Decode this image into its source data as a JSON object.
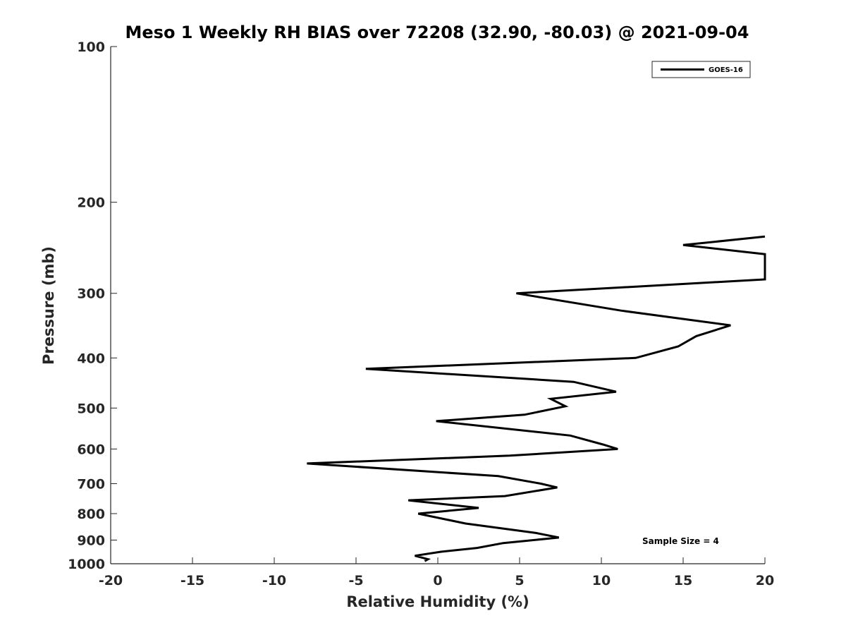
{
  "chart_data": {
    "type": "line",
    "title": "Meso 1 Weekly RH BIAS over 72208 (32.90, -80.03) @ 2021-09-04",
    "xlabel": "Relative Humidity (%)",
    "ylabel": "Pressure (mb)",
    "xlim": [
      -20,
      20
    ],
    "ylim": [
      100,
      1000
    ],
    "y_scale": "log",
    "y_reversed": true,
    "grid": false,
    "legend_position": "top-right",
    "x_ticks": [
      "-20",
      "-15",
      "-10",
      "-5",
      "0",
      "5",
      "10",
      "15",
      "20"
    ],
    "y_ticks": [
      "100",
      "200",
      "300",
      "400",
      "500",
      "600",
      "700",
      "800",
      "900",
      "1000"
    ],
    "annotation": "Sample Size = 4",
    "series": [
      {
        "name": "GOES-16",
        "color": "#000000",
        "x": [
          20,
          15.0,
          20,
          20,
          4.8,
          11.2,
          17.9,
          15.8,
          14.7,
          12.1,
          -4.4,
          8.3,
          10.9,
          6.9,
          7.8,
          5.3,
          -0.1,
          8.1,
          10.1,
          11.0,
          4.4,
          -8.0,
          3.7,
          6.3,
          7.3,
          4.1,
          -1.8,
          2.5,
          -1.2,
          1.7,
          6.0,
          7.4,
          4.0,
          2.4,
          0.2,
          -1.4,
          -0.6,
          -0.8
        ],
        "y": [
          233,
          242,
          252,
          282,
          300,
          324,
          346,
          363,
          380,
          400,
          420,
          445,
          465,
          480,
          496,
          515,
          530,
          565,
          588,
          600,
          618,
          640,
          677,
          700,
          712,
          740,
          754,
          780,
          800,
          836,
          872,
          890,
          912,
          932,
          948,
          965,
          980,
          988
        ]
      }
    ]
  }
}
